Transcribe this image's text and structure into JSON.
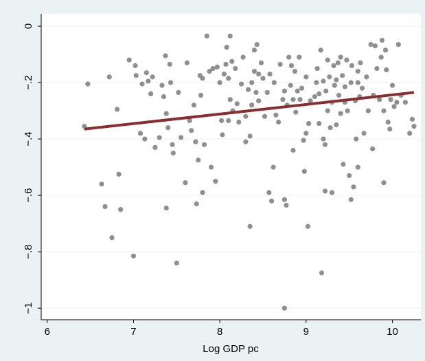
{
  "chart_data": {
    "type": "scatter",
    "x_label": "Log GDP pc",
    "xlim": [
      5.93,
      10.33
    ],
    "xticks": [
      6,
      7,
      8,
      9,
      10
    ],
    "ylim": [
      -1.041,
      0.044
    ],
    "yticks": [
      {
        "value": 0,
        "label": "0"
      },
      {
        "value": -0.2,
        "label": "−.2"
      },
      {
        "value": -0.4,
        "label": "−.4"
      },
      {
        "value": -0.6,
        "label": "−.6"
      },
      {
        "value": -0.8,
        "label": "−.8"
      },
      {
        "value": -1,
        "label": "−1"
      }
    ],
    "grid": true,
    "series": [
      {
        "type": "scatter",
        "color": "#8f8f8f",
        "x": [
          6.43,
          6.47,
          6.63,
          6.67,
          6.72,
          6.75,
          6.81,
          6.83,
          6.85,
          6.95,
          7.0,
          7.02,
          7.03,
          7.08,
          7.1,
          7.13,
          7.15,
          7.17,
          7.2,
          7.22,
          7.25,
          7.3,
          7.33,
          7.35,
          7.37,
          7.38,
          7.38,
          7.4,
          7.42,
          7.43,
          7.45,
          7.46,
          7.5,
          7.52,
          7.55,
          7.6,
          7.62,
          7.65,
          7.67,
          7.7,
          7.72,
          7.73,
          7.75,
          7.77,
          7.78,
          7.8,
          7.8,
          7.82,
          7.85,
          7.88,
          7.9,
          7.92,
          7.95,
          7.97,
          8.0,
          8.02,
          8.03,
          8.05,
          8.07,
          8.08,
          8.1,
          8.1,
          8.12,
          8.12,
          8.14,
          8.15,
          8.18,
          8.2,
          8.22,
          8.25,
          8.27,
          8.3,
          8.3,
          8.33,
          8.35,
          8.35,
          8.37,
          8.37,
          8.4,
          8.4,
          8.42,
          8.43,
          8.45,
          8.45,
          8.48,
          8.5,
          8.52,
          8.55,
          8.57,
          8.58,
          8.6,
          8.62,
          8.63,
          8.65,
          8.68,
          8.7,
          8.73,
          8.75,
          8.75,
          8.77,
          8.75,
          8.78,
          8.8,
          8.82,
          8.83,
          8.85,
          8.85,
          8.87,
          8.88,
          8.9,
          8.92,
          8.93,
          8.95,
          8.97,
          8.98,
          9.0,
          9.0,
          9.02,
          9.03,
          9.05,
          9.1,
          9.12,
          9.13,
          9.15,
          9.17,
          9.18,
          9.2,
          9.2,
          9.22,
          9.22,
          9.23,
          9.25,
          9.25,
          9.27,
          9.28,
          9.3,
          9.3,
          9.32,
          9.33,
          9.35,
          9.37,
          9.38,
          9.4,
          9.4,
          9.42,
          9.43,
          9.45,
          9.47,
          9.48,
          9.5,
          9.52,
          9.52,
          9.53,
          9.55,
          9.57,
          9.58,
          9.6,
          9.6,
          9.62,
          9.63,
          9.65,
          9.67,
          9.7,
          9.72,
          9.75,
          9.77,
          9.78,
          9.8,
          9.82,
          9.85,
          9.87,
          9.88,
          9.9,
          9.9,
          9.92,
          9.93,
          9.95,
          9.97,
          9.98,
          10.0,
          10.02,
          10.05,
          10.07,
          10.1,
          10.15,
          10.2,
          10.23,
          10.25,
          9.6,
          9.45,
          9.35,
          9.15
        ],
        "values": [
          -0.355,
          -0.205,
          -0.56,
          -0.64,
          -0.18,
          -0.75,
          -0.295,
          -0.525,
          -0.65,
          -0.12,
          -0.815,
          -0.14,
          -0.175,
          -0.38,
          -0.205,
          -0.4,
          -0.165,
          -0.195,
          -0.24,
          -0.18,
          -0.43,
          -0.395,
          -0.21,
          -0.25,
          -0.105,
          -0.31,
          -0.645,
          -0.36,
          -0.135,
          -0.2,
          -0.42,
          -0.45,
          -0.84,
          -0.235,
          -0.395,
          -0.555,
          -0.13,
          -0.335,
          -0.37,
          -0.28,
          -0.41,
          -0.63,
          -0.475,
          -0.175,
          -0.245,
          -0.185,
          -0.59,
          -0.42,
          -0.035,
          -0.16,
          -0.5,
          -0.15,
          -0.55,
          -0.145,
          -0.2,
          -0.335,
          -0.385,
          -0.17,
          -0.135,
          -0.075,
          -0.185,
          -0.335,
          -0.035,
          -0.26,
          -0.125,
          -0.3,
          -0.15,
          -0.275,
          -0.34,
          -0.205,
          -0.11,
          -0.32,
          -0.41,
          -0.225,
          -0.39,
          -0.71,
          -0.2,
          -0.28,
          -0.085,
          -0.16,
          -0.235,
          -0.065,
          -0.17,
          -0.265,
          -0.13,
          -0.185,
          -0.32,
          -0.235,
          -0.59,
          -0.17,
          -0.62,
          -0.5,
          -0.2,
          -0.315,
          -0.34,
          -0.135,
          -0.26,
          -0.23,
          -0.615,
          -0.635,
          -1.0,
          -0.28,
          -0.11,
          -0.21,
          -0.14,
          -0.44,
          -0.26,
          -0.16,
          -0.305,
          -0.23,
          -0.11,
          -0.26,
          -0.22,
          -0.405,
          -0.515,
          -0.38,
          -0.18,
          -0.71,
          -0.345,
          -0.265,
          -0.25,
          -0.2,
          -0.15,
          -0.345,
          -0.085,
          -0.875,
          -0.195,
          -0.4,
          -0.42,
          -0.585,
          -0.23,
          -0.3,
          -0.12,
          -0.18,
          -0.36,
          -0.59,
          -0.27,
          -0.14,
          -0.21,
          -0.35,
          -0.13,
          -0.245,
          -0.11,
          -0.31,
          -0.175,
          -0.49,
          -0.215,
          -0.12,
          -0.3,
          -0.53,
          -0.615,
          -0.2,
          -0.14,
          -0.57,
          -0.265,
          -0.4,
          -0.16,
          -0.5,
          -0.25,
          -0.13,
          -0.22,
          -0.38,
          -0.18,
          -0.3,
          -0.065,
          -0.435,
          -0.245,
          -0.07,
          -0.15,
          -0.26,
          -0.11,
          -0.05,
          -0.555,
          -0.3,
          -0.085,
          -0.155,
          -0.34,
          -0.365,
          -0.26,
          -0.21,
          -0.285,
          -0.27,
          -0.065,
          -0.245,
          -0.27,
          -0.38,
          -0.33,
          -0.355,
          -0.2,
          -0.27,
          -0.19,
          -0.24
        ]
      },
      {
        "type": "line",
        "color": "#8b2c2f",
        "x": [
          6.43,
          10.25
        ],
        "values": [
          -0.365,
          -0.235
        ]
      }
    ]
  }
}
